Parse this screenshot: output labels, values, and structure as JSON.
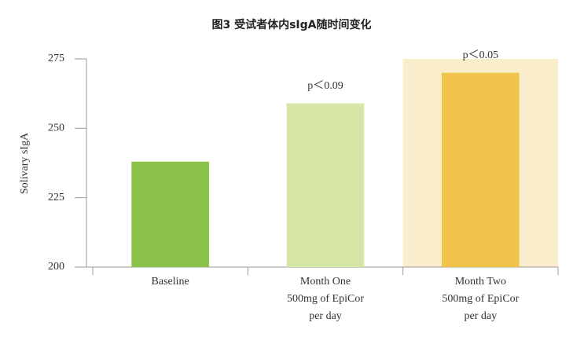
{
  "chart_data": {
    "type": "bar",
    "title": "图3 受试者体内sIgA随时间变化",
    "y_label": "Solivary sIgA",
    "categories": [
      [
        "Baseline"
      ],
      [
        "Month One",
        "500mg of EpiCor",
        "per day"
      ],
      [
        "Month Two",
        "500mg of EpiCor",
        "per day"
      ]
    ],
    "values": [
      238,
      259,
      270
    ],
    "colors": [
      "#8bc34a",
      "#d5e6a7",
      "#f0c34b"
    ],
    "annotations": [
      null,
      "p＜0.09",
      "p＜0.05"
    ],
    "highlight_category": 2,
    "highlight_color": "#faedcc",
    "ylim": [
      200,
      275
    ],
    "yticks": [
      200,
      225,
      250,
      275
    ],
    "grid": false
  }
}
